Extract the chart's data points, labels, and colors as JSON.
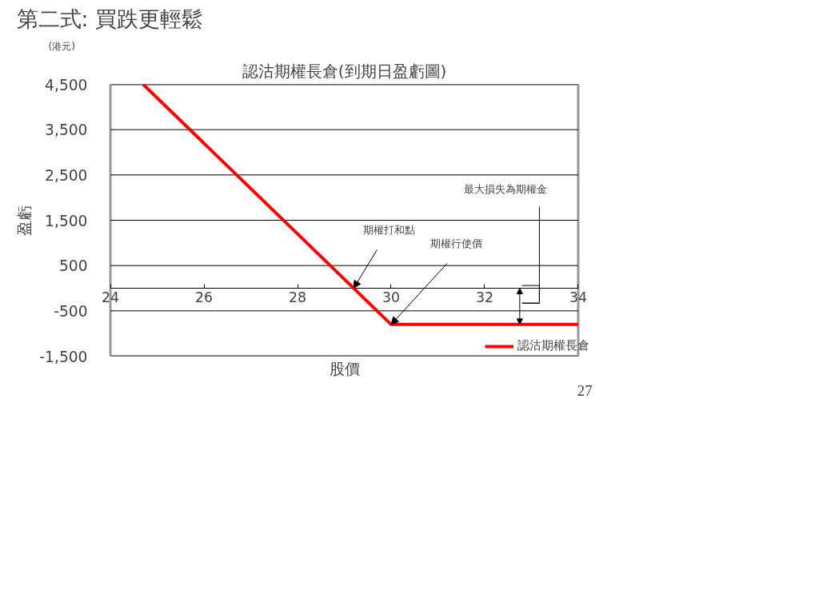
{
  "chart_data": {
    "type": "line",
    "title": "第二式: 買跌更輕鬆",
    "subtitle": "認沽期權長倉(到期日盈虧圖)",
    "xlabel": "股價",
    "ylabel": "盈虧",
    "series": [
      {
        "name": "認沽期權長倉",
        "color": "#ff0000",
        "x": [
          24.7,
          30,
          34
        ],
        "values": [
          4500,
          -800,
          -800
        ]
      }
    ],
    "xlim": [
      24,
      34
    ],
    "xticks": [
      24,
      26,
      28,
      30,
      32,
      34
    ],
    "ylim": [
      -1500,
      4500
    ],
    "yticks": [
      {
        "value": 4500,
        "label": "4,500"
      },
      {
        "value": 3500,
        "label": "3,500"
      },
      {
        "value": 2500,
        "label": "2,500"
      },
      {
        "value": 1500,
        "label": "1,500"
      },
      500,
      -500,
      {
        "value": -1500,
        "label": "-1,500"
      }
    ],
    "grid": "y",
    "legend": "bottom right",
    "marker": "none",
    "line_style": "solid",
    "annotations": [
      "(港元)",
      {
        "text": "期權打和點",
        "x": 29.2,
        "y": 0
      },
      {
        "text": "期權行使價",
        "x": 30,
        "y": -800
      },
      "最大損失為期權金",
      "27"
    ]
  }
}
